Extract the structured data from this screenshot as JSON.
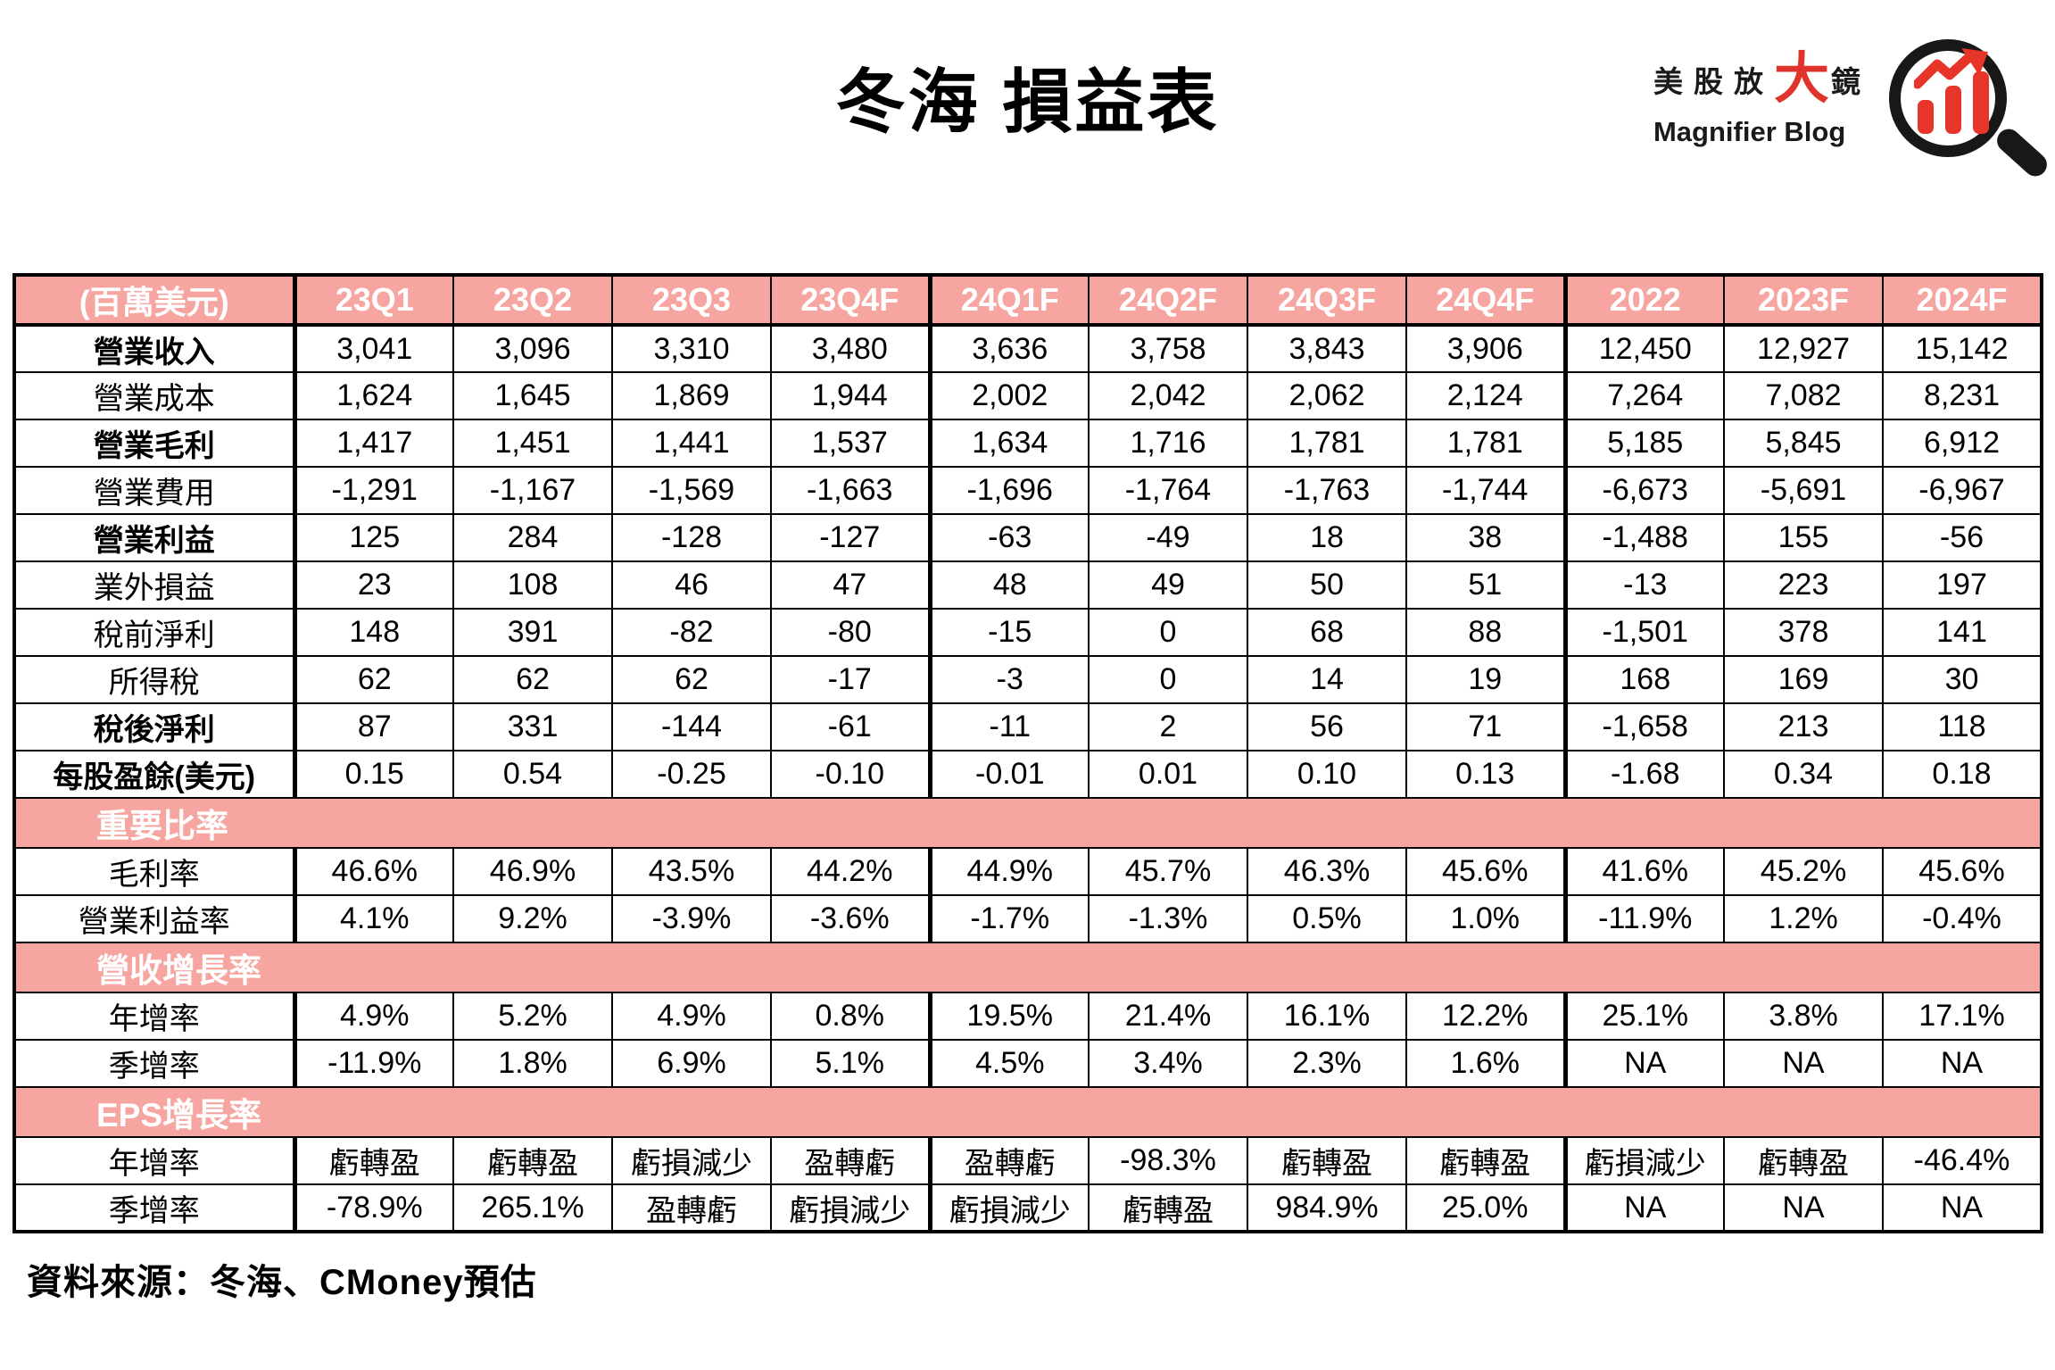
{
  "logo": {
    "brand_zh_prefix": "美股放",
    "brand_zh_big": "大",
    "brand_zh_suffix": "鏡",
    "brand_en": "Magnifier Blog",
    "icon": "magnifier-with-rising-bar-chart-icon",
    "accent_red": "#e0332b"
  },
  "colors": {
    "header_pink": "#f6a5a1",
    "border_black": "#000000",
    "section_text_white": "#ffffff"
  },
  "chart_data": {
    "type": "table",
    "title": "冬海 損益表",
    "unit": "(百萬美元)",
    "columns": [
      "23Q1",
      "23Q2",
      "23Q3",
      "23Q4F",
      "24Q1F",
      "24Q2F",
      "24Q3F",
      "24Q4F",
      "2022",
      "2023F",
      "2024F"
    ],
    "rows": [
      {
        "kind": "data",
        "bold": true,
        "label": "營業收入",
        "values": [
          "3,041",
          "3,096",
          "3,310",
          "3,480",
          "3,636",
          "3,758",
          "3,843",
          "3,906",
          "12,450",
          "12,927",
          "15,142"
        ]
      },
      {
        "kind": "data",
        "bold": false,
        "label": "營業成本",
        "values": [
          "1,624",
          "1,645",
          "1,869",
          "1,944",
          "2,002",
          "2,042",
          "2,062",
          "2,124",
          "7,264",
          "7,082",
          "8,231"
        ]
      },
      {
        "kind": "data",
        "bold": true,
        "label": "營業毛利",
        "values": [
          "1,417",
          "1,451",
          "1,441",
          "1,537",
          "1,634",
          "1,716",
          "1,781",
          "1,781",
          "5,185",
          "5,845",
          "6,912"
        ]
      },
      {
        "kind": "data",
        "bold": false,
        "label": "營業費用",
        "values": [
          "-1,291",
          "-1,167",
          "-1,569",
          "-1,663",
          "-1,696",
          "-1,764",
          "-1,763",
          "-1,744",
          "-6,673",
          "-5,691",
          "-6,967"
        ]
      },
      {
        "kind": "data",
        "bold": true,
        "label": "營業利益",
        "values": [
          "125",
          "284",
          "-128",
          "-127",
          "-63",
          "-49",
          "18",
          "38",
          "-1,488",
          "155",
          "-56"
        ]
      },
      {
        "kind": "data",
        "bold": false,
        "label": "業外損益",
        "values": [
          "23",
          "108",
          "46",
          "47",
          "48",
          "49",
          "50",
          "51",
          "-13",
          "223",
          "197"
        ]
      },
      {
        "kind": "data",
        "bold": false,
        "label": "稅前淨利",
        "values": [
          "148",
          "391",
          "-82",
          "-80",
          "-15",
          "0",
          "68",
          "88",
          "-1,501",
          "378",
          "141"
        ]
      },
      {
        "kind": "data",
        "bold": false,
        "label": "所得稅",
        "values": [
          "62",
          "62",
          "62",
          "-17",
          "-3",
          "0",
          "14",
          "19",
          "168",
          "169",
          "30"
        ]
      },
      {
        "kind": "data",
        "bold": true,
        "label": "稅後淨利",
        "values": [
          "87",
          "331",
          "-144",
          "-61",
          "-11",
          "2",
          "56",
          "71",
          "-1,658",
          "213",
          "118"
        ]
      },
      {
        "kind": "data",
        "bold": true,
        "label": "每股盈餘(美元)",
        "values": [
          "0.15",
          "0.54",
          "-0.25",
          "-0.10",
          "-0.01",
          "0.01",
          "0.10",
          "0.13",
          "-1.68",
          "0.34",
          "0.18"
        ]
      },
      {
        "kind": "section",
        "label": "重要比率"
      },
      {
        "kind": "data",
        "bold": false,
        "label": "毛利率",
        "values": [
          "46.6%",
          "46.9%",
          "43.5%",
          "44.2%",
          "44.9%",
          "45.7%",
          "46.3%",
          "45.6%",
          "41.6%",
          "45.2%",
          "45.6%"
        ]
      },
      {
        "kind": "data",
        "bold": false,
        "label": "營業利益率",
        "values": [
          "4.1%",
          "9.2%",
          "-3.9%",
          "-3.6%",
          "-1.7%",
          "-1.3%",
          "0.5%",
          "1.0%",
          "-11.9%",
          "1.2%",
          "-0.4%"
        ]
      },
      {
        "kind": "section",
        "label": "營收增長率"
      },
      {
        "kind": "data",
        "bold": false,
        "label": "年增率",
        "values": [
          "4.9%",
          "5.2%",
          "4.9%",
          "0.8%",
          "19.5%",
          "21.4%",
          "16.1%",
          "12.2%",
          "25.1%",
          "3.8%",
          "17.1%"
        ]
      },
      {
        "kind": "data",
        "bold": false,
        "label": "季增率",
        "values": [
          "-11.9%",
          "1.8%",
          "6.9%",
          "5.1%",
          "4.5%",
          "3.4%",
          "2.3%",
          "1.6%",
          "NA",
          "NA",
          "NA"
        ]
      },
      {
        "kind": "section",
        "label": "EPS增長率"
      },
      {
        "kind": "data",
        "bold": false,
        "label": "年增率",
        "values": [
          "虧轉盈",
          "虧轉盈",
          "虧損減少",
          "盈轉虧",
          "盈轉虧",
          "-98.3%",
          "虧轉盈",
          "虧轉盈",
          "虧損減少",
          "虧轉盈",
          "-46.4%"
        ]
      },
      {
        "kind": "data",
        "bold": false,
        "label": "季增率",
        "values": [
          "-78.9%",
          "265.1%",
          "盈轉虧",
          "虧損減少",
          "虧損減少",
          "虧轉盈",
          "984.9%",
          "25.0%",
          "NA",
          "NA",
          "NA"
        ]
      }
    ],
    "source": "資料來源：冬海、CMoney預估",
    "layout": {
      "group_separator_before_columns": [
        "24Q1F",
        "2022"
      ],
      "grid": "all-black-borders",
      "section_rows_full_width": true
    }
  }
}
